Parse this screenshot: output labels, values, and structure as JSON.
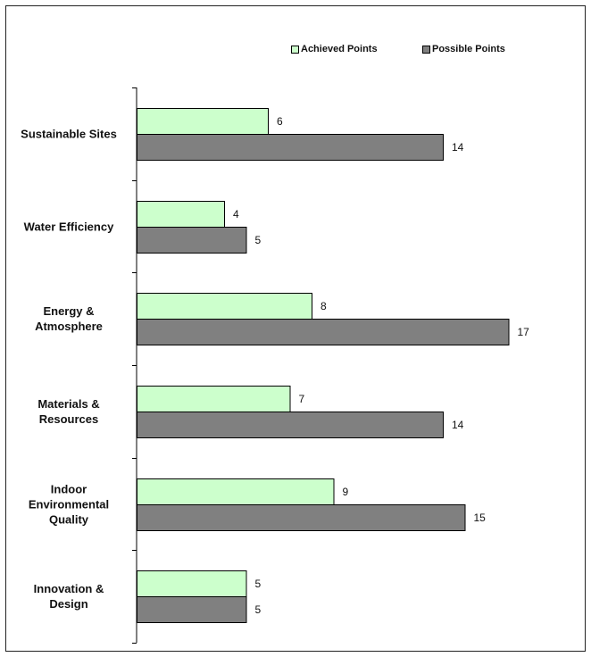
{
  "chart_data": {
    "type": "bar",
    "orientation": "horizontal",
    "categories": [
      [
        "Sustainable Sites"
      ],
      [
        "Water Efficiency"
      ],
      [
        "Energy &",
        "Atmosphere"
      ],
      [
        "Materials &",
        "Resources"
      ],
      [
        "Indoor",
        "Environmental",
        "Quality"
      ],
      [
        "Innovation &",
        "Design"
      ]
    ],
    "series": [
      {
        "name": "Achieved Points",
        "values": [
          6,
          4,
          8,
          7,
          9,
          5
        ],
        "color": "#ccffcc"
      },
      {
        "name": "Possible Points",
        "values": [
          14,
          5,
          17,
          14,
          15,
          5
        ],
        "color": "#808080"
      }
    ],
    "xlim": [
      0,
      20
    ],
    "grid": false,
    "legend_position": "top-right",
    "data_labels": true
  }
}
